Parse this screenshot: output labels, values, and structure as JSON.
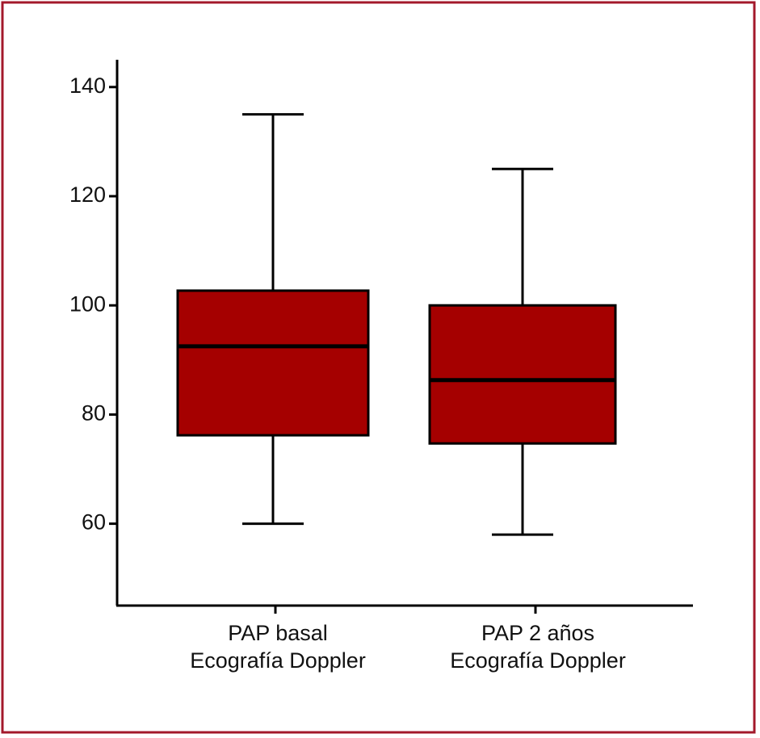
{
  "chart_data": {
    "type": "box",
    "categories": [
      [
        "PAP basal",
        "Ecografía Doppler"
      ],
      [
        "PAP  2 años",
        "Ecografía Doppler"
      ]
    ],
    "values": [
      {
        "min": 60,
        "q1": 76.2,
        "median": 92.5,
        "q3": 102.7,
        "max": 135
      },
      {
        "min": 58,
        "q1": 74.7,
        "median": 86.3,
        "q3": 100,
        "max": 125
      }
    ],
    "color": "#a50000",
    "ylim": [
      45,
      145
    ],
    "yticks": [
      60,
      80,
      100,
      120,
      140
    ]
  }
}
